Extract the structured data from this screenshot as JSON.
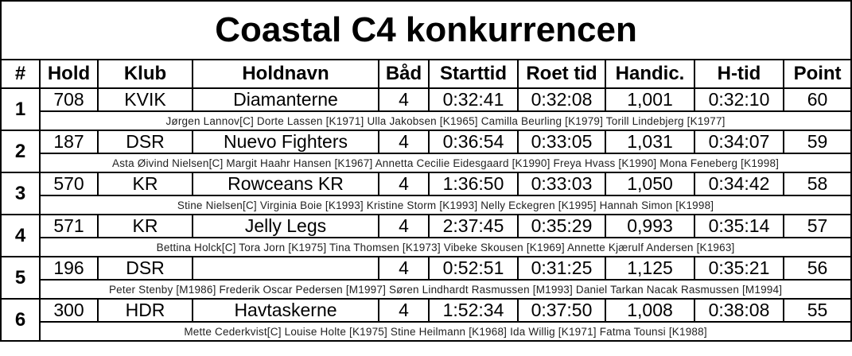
{
  "title": "Coastal C4 konkurrencen",
  "headers": [
    "#",
    "Hold",
    "Klub",
    "Holdnavn",
    "Båd",
    "Starttid",
    "Roet tid",
    "Handic.",
    "H-tid",
    "Point"
  ],
  "rows": [
    {
      "rank": "1",
      "hold": "708",
      "klub": "KVIK",
      "holdnavn": "Diamanterne",
      "baad": "4",
      "starttid": "0:32:41",
      "roet": "0:32:08",
      "handic": "1,001",
      "htid": "0:32:10",
      "point": "60",
      "crew": "Jørgen Lannov[C] Dorte Lassen [K1971] Ulla Jakobsen [K1965] Camilla Beurling [K1979] Torill Lindebjerg [K1977]"
    },
    {
      "rank": "2",
      "hold": "187",
      "klub": "DSR",
      "holdnavn": "Nuevo Fighters",
      "baad": "4",
      "starttid": "0:36:54",
      "roet": "0:33:05",
      "handic": "1,031",
      "htid": "0:34:07",
      "point": "59",
      "crew": "Asta Øivind Nielsen[C] Margit Haahr Hansen [K1967] Annetta Cecilie Eidesgaard [K1990] Freya Hvass [K1990] Mona Feneberg [K1998]"
    },
    {
      "rank": "3",
      "hold": "570",
      "klub": "KR",
      "holdnavn": "Rowceans KR",
      "baad": "4",
      "starttid": "1:36:50",
      "roet": "0:33:03",
      "handic": "1,050",
      "htid": "0:34:42",
      "point": "58",
      "crew": "Stine Nielsen[C] Virginia Boie [K1993] Kristine Storm [K1993] Nelly Eckegren [K1995] Hannah Simon [K1998]"
    },
    {
      "rank": "4",
      "hold": "571",
      "klub": "KR",
      "holdnavn": "Jelly Legs",
      "baad": "4",
      "starttid": "2:37:45",
      "roet": "0:35:29",
      "handic": "0,993",
      "htid": "0:35:14",
      "point": "57",
      "crew": "Bettina Holck[C] Tora Jorn [K1975] Tina Thomsen [K1973] Vibeke Skousen [K1969] Annette Kjærulf Andersen [K1963]"
    },
    {
      "rank": "5",
      "hold": "196",
      "klub": "DSR",
      "holdnavn": "",
      "baad": "4",
      "starttid": "0:52:51",
      "roet": "0:31:25",
      "handic": "1,125",
      "htid": "0:35:21",
      "point": "56",
      "crew": "Peter Stenby [M1986] Frederik Oscar Pedersen [M1997] Søren Lindhardt Rasmussen [M1993] Daniel Tarkan Nacak Rasmussen [M1994]"
    },
    {
      "rank": "6",
      "hold": "300",
      "klub": "HDR",
      "holdnavn": "Havtaskerne",
      "baad": "4",
      "starttid": "1:52:34",
      "roet": "0:37:50",
      "handic": "1,008",
      "htid": "0:38:08",
      "point": "55",
      "crew": "Mette Cederkvist[C] Louise Holte [K1975] Stine Heilmann [K1968] Ida Willig [K1971] Fatma Tounsi [K1988]"
    }
  ]
}
